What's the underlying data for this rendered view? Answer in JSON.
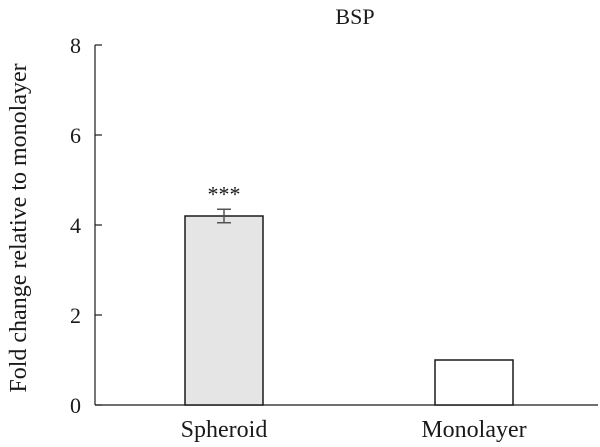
{
  "chart_data": {
    "type": "bar",
    "title": "BSP",
    "ylabel": "Fold change relative to monolayer",
    "xlabel": "",
    "categories": [
      "Spheroid",
      "Monolayer"
    ],
    "values": [
      4.2,
      1.0
    ],
    "errors": [
      0.15,
      0.01
    ],
    "annotations": [
      "***",
      ""
    ],
    "bar_colors": [
      "#e5e5e5",
      "#ffffff"
    ],
    "ylim": [
      0,
      8
    ],
    "yticks": [
      0,
      2,
      4,
      6,
      8
    ],
    "grid": false,
    "legend": "none"
  }
}
